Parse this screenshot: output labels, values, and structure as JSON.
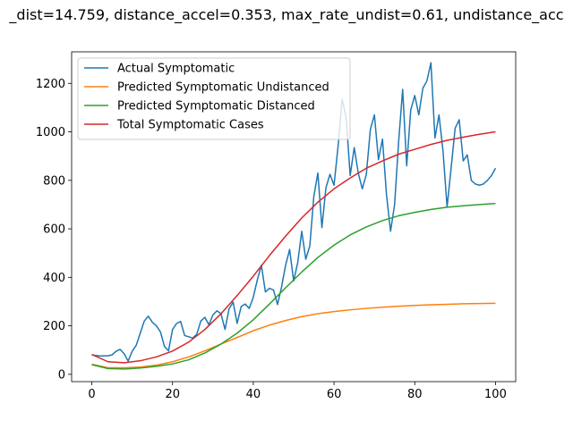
{
  "chart_data": {
    "type": "line",
    "title": "_dist=14.759, distance_accel=0.353, max_rate_undist=0.61, undistance_acc",
    "xlabel": "",
    "ylabel": "",
    "xlim": [
      -5,
      105
    ],
    "ylim": [
      -30,
      1330
    ],
    "xticks": [
      0,
      20,
      40,
      60,
      80,
      100
    ],
    "yticks": [
      0,
      200,
      400,
      600,
      800,
      1000,
      1200
    ],
    "grid": false,
    "legend_position": "top-left",
    "series": [
      {
        "name": "Actual Symptomatic",
        "color": "#1f77b4",
        "x": [
          0,
          1,
          2,
          3,
          4,
          5,
          6,
          7,
          8,
          9,
          10,
          11,
          12,
          13,
          14,
          15,
          16,
          17,
          18,
          19,
          20,
          21,
          22,
          23,
          24,
          25,
          26,
          27,
          28,
          29,
          30,
          31,
          32,
          33,
          34,
          35,
          36,
          37,
          38,
          39,
          40,
          41,
          42,
          43,
          44,
          45,
          46,
          47,
          48,
          49,
          50,
          51,
          52,
          53,
          54,
          55,
          56,
          57,
          58,
          59,
          60,
          61,
          62,
          63,
          64,
          65,
          66,
          67,
          68,
          69,
          70,
          71,
          72,
          73,
          74,
          75,
          76,
          77,
          78,
          79,
          80,
          81,
          82,
          83,
          84,
          85,
          86,
          87,
          88,
          89,
          90,
          91,
          92,
          93,
          94,
          95,
          96,
          97,
          98,
          99,
          100
        ],
        "y": [
          80,
          78,
          76,
          76,
          77,
          80,
          95,
          103,
          85,
          55,
          95,
          120,
          170,
          220,
          240,
          215,
          200,
          175,
          115,
          97,
          185,
          210,
          218,
          160,
          155,
          150,
          165,
          220,
          235,
          205,
          245,
          262,
          250,
          185,
          270,
          298,
          210,
          280,
          290,
          272,
          318,
          390,
          450,
          340,
          355,
          348,
          288,
          360,
          450,
          515,
          385,
          460,
          590,
          475,
          530,
          735,
          830,
          605,
          770,
          825,
          780,
          940,
          1135,
          1060,
          820,
          935,
          830,
          765,
          825,
          1010,
          1070,
          885,
          970,
          740,
          590,
          700,
          960,
          1175,
          860,
          1090,
          1150,
          1070,
          1180,
          1210,
          1285,
          975,
          1070,
          920,
          690,
          850,
          1015,
          1050,
          880,
          905,
          800,
          785,
          780,
          785,
          800,
          820,
          850
        ]
      },
      {
        "name": "Predicted Symptomatic Undistanced",
        "color": "#ff7f0e",
        "x": [
          0,
          4,
          8,
          12,
          16,
          20,
          24,
          28,
          32,
          36,
          40,
          44,
          48,
          52,
          56,
          60,
          64,
          68,
          72,
          76,
          80,
          84,
          88,
          92,
          96,
          100
        ],
        "y": [
          42,
          27,
          27,
          30,
          38,
          52,
          72,
          97,
          125,
          152,
          180,
          203,
          222,
          238,
          250,
          259,
          266,
          272,
          277,
          281,
          284,
          287,
          289,
          291,
          292,
          293
        ]
      },
      {
        "name": "Predicted Symptomatic Distanced",
        "color": "#2ca02c",
        "x": [
          0,
          4,
          8,
          12,
          16,
          20,
          24,
          28,
          32,
          36,
          40,
          44,
          48,
          52,
          56,
          60,
          64,
          68,
          72,
          76,
          80,
          84,
          88,
          92,
          96,
          100
        ],
        "y": [
          40,
          24,
          22,
          26,
          33,
          43,
          60,
          88,
          125,
          170,
          225,
          290,
          357,
          422,
          482,
          533,
          575,
          608,
          634,
          654,
          668,
          680,
          689,
          695,
          700,
          705
        ]
      },
      {
        "name": "Total Symptomatic Cases",
        "color": "#d62728",
        "x": [
          0,
          4,
          8,
          12,
          16,
          20,
          24,
          28,
          32,
          36,
          40,
          44,
          48,
          52,
          56,
          60,
          64,
          68,
          72,
          76,
          80,
          84,
          88,
          92,
          96,
          100
        ],
        "y": [
          82,
          52,
          48,
          56,
          72,
          96,
          133,
          185,
          250,
          325,
          405,
          490,
          570,
          645,
          710,
          765,
          810,
          850,
          880,
          908,
          928,
          948,
          965,
          978,
          990,
          1000
        ]
      }
    ]
  }
}
